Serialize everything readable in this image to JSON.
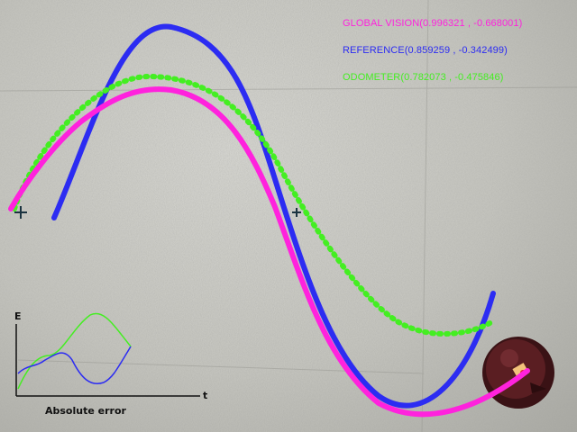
{
  "overlay": {
    "legend": [
      {
        "id": "global",
        "label": "GLOBAL VISION",
        "coords": "(0.996321 , -0.668001)",
        "color": "#ff22dd"
      },
      {
        "id": "ref",
        "label": "REFERENCE",
        "coords": "(0.859259 , -0.342499)",
        "color": "#2c2cf2"
      },
      {
        "id": "odo",
        "label": "ODOMETER",
        "coords": "(0.782073 , -0.475846)",
        "color": "#44ee22"
      }
    ],
    "inset": {
      "y_axis_label": "E",
      "x_axis_label": "t",
      "caption": "Absolute error"
    }
  },
  "colors": {
    "floor": "#c8c8c2",
    "robot_body": "#5a1e22",
    "robot_tag": "#f2c27a"
  }
}
